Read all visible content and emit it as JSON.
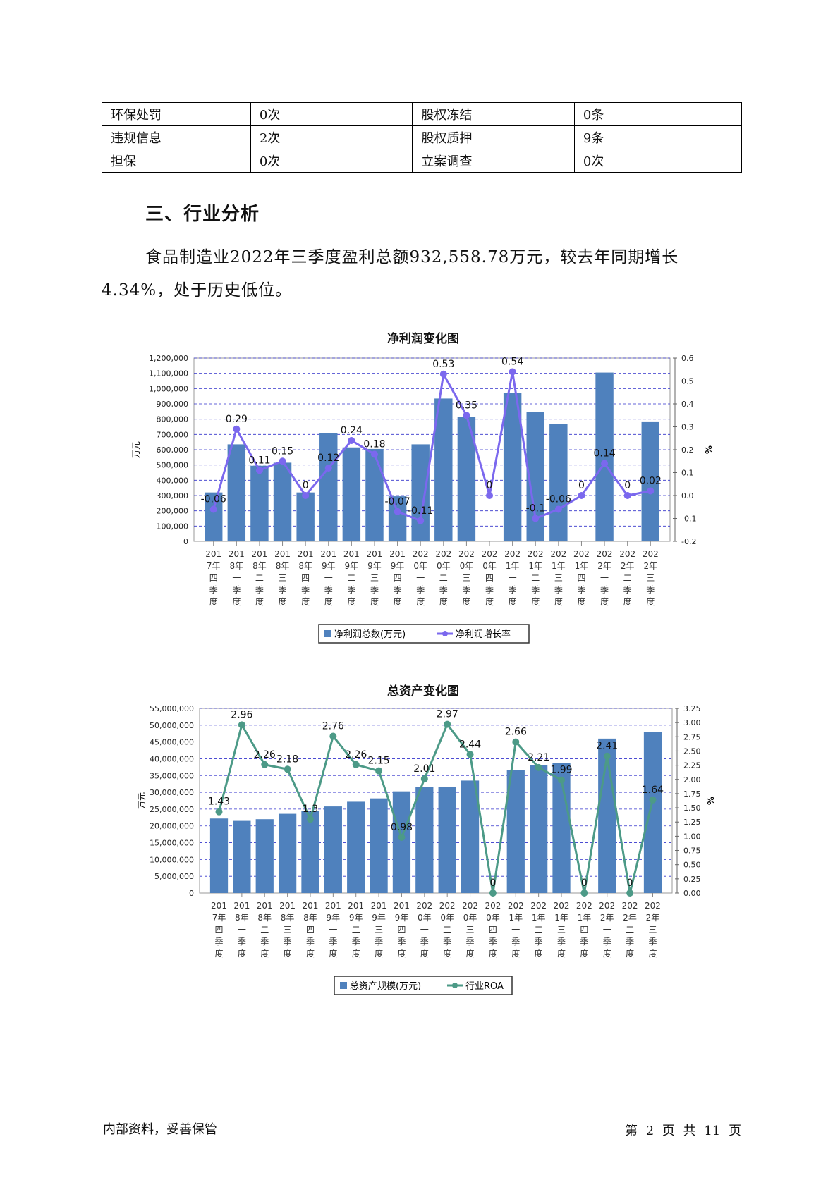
{
  "risk_table": [
    [
      "环保处罚",
      "0次",
      "股权冻结",
      "0条"
    ],
    [
      "违规信息",
      "2次",
      "股权质押",
      "9条"
    ],
    [
      "担保",
      "0次",
      "立案调查",
      "0次"
    ]
  ],
  "section_title": "三、行业分析",
  "paragraph": "食品制造业2022年三季度盈利总额932,558.78万元，较去年同期增长4.34%，处于历史低位。",
  "footer": {
    "left": "内部资料，妥善保管",
    "page_prefix": "第",
    "page_num": "2",
    "page_mid": "页  共",
    "page_total": "11",
    "page_suffix": "页"
  },
  "colors": {
    "bar": "#4f81bd",
    "line1": "#7b68ee",
    "line2": "#4c9a87",
    "grid": "#3333cc"
  },
  "chart_data": [
    {
      "type": "bar+line",
      "title": "净利润变化图",
      "categories": [
        "2017年四季度",
        "2018年一季度",
        "2018年二季度",
        "2018年三季度",
        "2018年四季度",
        "2019年一季度",
        "2019年二季度",
        "2019年三季度",
        "2019年四季度",
        "2020年一季度",
        "2020年二季度",
        "2020年三季度",
        "2020年四季度",
        "2021年一季度",
        "2021年二季度",
        "2021年三季度",
        "2021年四季度",
        "2022年一季度",
        "2022年二季度",
        "2022年三季度"
      ],
      "ylabel": "万元",
      "y2label": "%",
      "ylim": [
        0,
        1200000
      ],
      "y2lim": [
        -0.2,
        0.6
      ],
      "yticks": [
        "0",
        "100,000",
        "200,000",
        "300,000",
        "400,000",
        "500,000",
        "600,000",
        "700,000",
        "800,000",
        "900,000",
        "1,000,000",
        "1,100,000",
        "1,200,000"
      ],
      "y2ticks": [
        "-0.2",
        "-0.1",
        "0.0",
        "0.1",
        "0.2",
        "0.3",
        "0.4",
        "0.5",
        "0.6"
      ],
      "series": [
        {
          "name": "净利润总数(万元)",
          "kind": "bar",
          "values": [
            320000,
            635000,
            495000,
            515000,
            320000,
            710000,
            615000,
            605000,
            295000,
            635000,
            935000,
            815000,
            0,
            970000,
            845000,
            770000,
            0,
            1105000,
            0,
            785000
          ]
        },
        {
          "name": "净利润增长率",
          "kind": "line",
          "values": [
            -0.06,
            0.29,
            0.11,
            0.15,
            0,
            0.12,
            0.24,
            0.18,
            -0.07,
            -0.11,
            0.53,
            0.35,
            0,
            0.54,
            -0.1,
            -0.06,
            0,
            0.14,
            0,
            0.02
          ],
          "labels": [
            "-0.06",
            "0.29",
            "0.11",
            "0.15",
            "0",
            "0.12",
            "0.24",
            "0.18",
            "-0.07",
            "-0.11",
            "0.53",
            "0.35",
            "0",
            "0.54",
            "-0.1",
            "-0.06",
            "0",
            "0.14",
            "0",
            "0.02"
          ]
        }
      ]
    },
    {
      "type": "bar+line",
      "title": "总资产变化图",
      "categories": [
        "2017年四季度",
        "2018年一季度",
        "2018年二季度",
        "2018年三季度",
        "2018年四季度",
        "2019年一季度",
        "2019年二季度",
        "2019年三季度",
        "2019年四季度",
        "2020年一季度",
        "2020年二季度",
        "2020年三季度",
        "2020年四季度",
        "2021年一季度",
        "2021年二季度",
        "2021年三季度",
        "2021年四季度",
        "2022年一季度",
        "2022年二季度",
        "2022年三季度"
      ],
      "ylabel": "万元",
      "y2label": "%",
      "ylim": [
        0,
        55000000
      ],
      "y2lim": [
        0,
        3.25
      ],
      "yticks": [
        "0",
        "5,000,000",
        "10,000,000",
        "15,000,000",
        "20,000,000",
        "25,000,000",
        "30,000,000",
        "35,000,000",
        "40,000,000",
        "45,000,000",
        "50,000,000",
        "55,000,000"
      ],
      "y2ticks": [
        "0.00",
        "0.25",
        "0.50",
        "0.75",
        "1.00",
        "1.25",
        "1.50",
        "1.75",
        "2.00",
        "2.25",
        "2.50",
        "2.75",
        "3.00",
        "3.25"
      ],
      "series": [
        {
          "name": "总资产规模(万元)",
          "kind": "bar",
          "values": [
            22200000,
            21500000,
            22000000,
            23600000,
            24500000,
            25800000,
            27200000,
            28200000,
            30300000,
            31500000,
            31700000,
            33500000,
            0,
            36700000,
            38200000,
            38800000,
            0,
            46000000,
            0,
            48000000
          ]
        },
        {
          "name": "行业ROA",
          "kind": "line",
          "values": [
            1.43,
            2.96,
            2.26,
            2.18,
            1.3,
            2.76,
            2.26,
            2.15,
            0.98,
            2.01,
            2.97,
            2.44,
            0,
            2.66,
            2.21,
            1.99,
            0,
            2.41,
            0,
            1.64
          ],
          "labels": [
            "1.43",
            "2.96",
            "2.26",
            "2.18",
            "1.3",
            "2.76",
            "2.26",
            "2.15",
            "0.98",
            "2.01",
            "2.97",
            "2.44",
            "0",
            "2.66",
            "2.21",
            "1.99",
            "0",
            "2.41",
            "0",
            "1.64"
          ]
        }
      ]
    }
  ]
}
